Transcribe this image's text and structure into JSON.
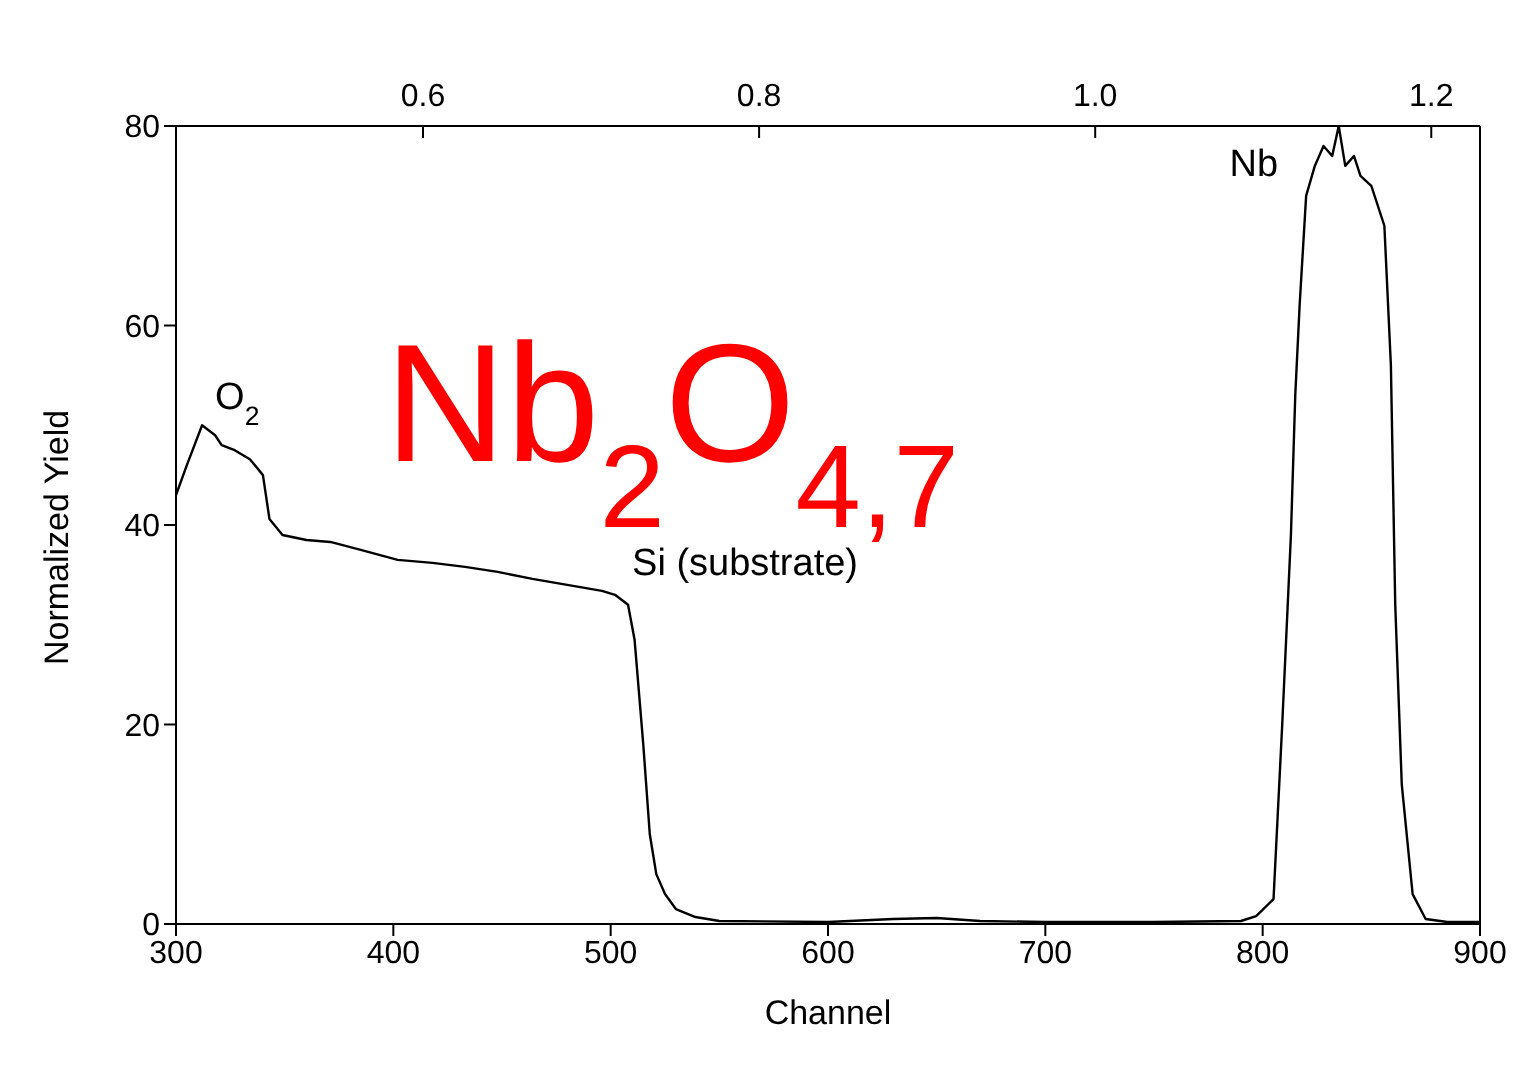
{
  "chart_data": {
    "type": "line",
    "xlabel": "Channel",
    "ylabel": "Normalized Yield",
    "xlim": [
      300,
      900
    ],
    "xticks": [
      300,
      400,
      500,
      600,
      700,
      800,
      900
    ],
    "ylim": [
      0,
      80
    ],
    "yticks": [
      0,
      20,
      40,
      60,
      80
    ],
    "x2lim": [
      0.453,
      1.229
    ],
    "x2ticks": [
      {
        "value": 0.6,
        "label": "0.6"
      },
      {
        "value": 0.8,
        "label": "0.8"
      },
      {
        "value": 1.0,
        "label": "1.0"
      },
      {
        "value": 1.2,
        "label": "1.2"
      }
    ],
    "grid": false,
    "legend": false,
    "marker": "none",
    "line_style": "solid",
    "annotations": [
      {
        "text": "O$_{2}$",
        "x": 318,
        "y": 50
      },
      {
        "text": "Si (substrate)",
        "x": 508,
        "y": 33
      },
      {
        "text": "Nb",
        "x": 820,
        "y": 73
      },
      "Nb$_{2}$O$_{4,7}$"
    ],
    "series": [
      {
        "color": "#000000",
        "x": [
          300,
          305,
          312,
          318,
          321,
          327,
          334,
          340,
          343,
          349,
          360,
          371,
          385,
          402,
          418,
          433,
          448,
          464,
          480,
          496,
          502,
          508,
          511,
          515,
          518,
          521,
          525,
          530,
          539,
          550,
          600,
          630,
          650,
          670,
          700,
          750,
          790,
          797,
          805,
          809,
          813,
          815,
          817,
          820,
          824,
          828,
          832,
          835,
          838,
          842,
          845,
          850,
          856,
          859,
          861,
          864,
          869,
          875,
          885,
          900
        ],
        "values": [
          43,
          46,
          50,
          49,
          48,
          47.5,
          46.6,
          45,
          40.6,
          39,
          38.5,
          38.3,
          37.5,
          36.5,
          36.2,
          35.8,
          35.3,
          34.6,
          34,
          33.4,
          33,
          32,
          28.5,
          18,
          9,
          5,
          3,
          1.5,
          0.7,
          0.3,
          0.2,
          0.5,
          0.6,
          0.3,
          0.2,
          0.2,
          0.3,
          0.8,
          2.5,
          20,
          39,
          53,
          62,
          73,
          76,
          78,
          77,
          80,
          76,
          77,
          75,
          74,
          70,
          56,
          32,
          14,
          3,
          0.5,
          0.2,
          0.2
        ]
      }
    ]
  }
}
